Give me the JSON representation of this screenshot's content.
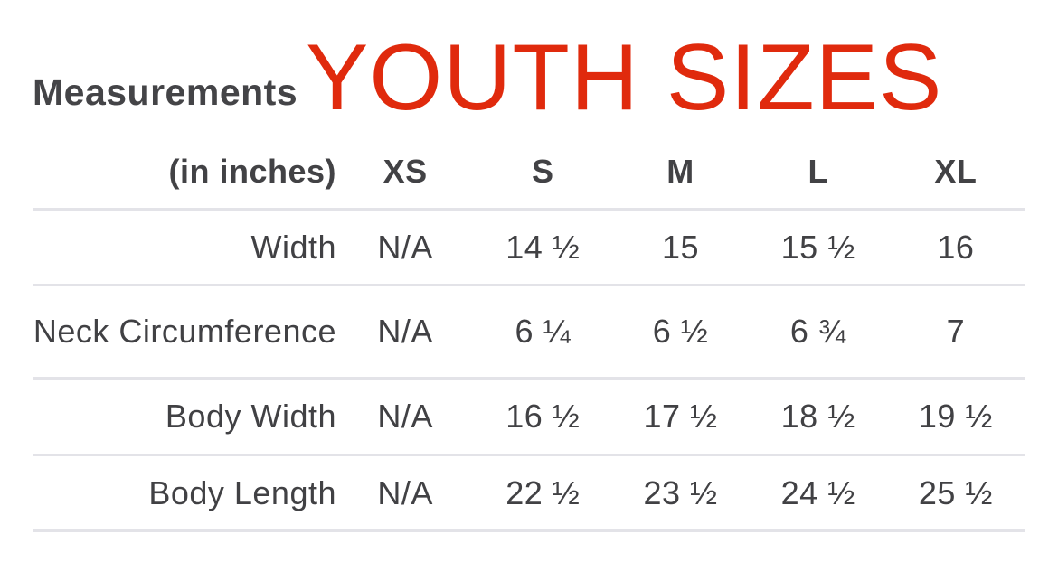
{
  "page": {
    "background": "#ffffff"
  },
  "title": {
    "measurements": "Measurements",
    "youth_sizes": "YOUTH SIZES",
    "accent_color": "#e02a0d",
    "text_color": "#444447"
  },
  "table": {
    "unit_label": "(in inches)",
    "columns": [
      "XS",
      "S",
      "M",
      "L",
      "XL"
    ],
    "rows": [
      {
        "label": "Width",
        "values": [
          "N/A",
          "14 ½",
          "15",
          "15 ½",
          "16"
        ]
      },
      {
        "label": "Neck Circumference",
        "values": [
          "N/A",
          "6 ¼",
          "6 ½",
          "6 ¾",
          "7"
        ]
      },
      {
        "label": "Body Width",
        "values": [
          "N/A",
          "16 ½",
          "17 ½",
          "18 ½",
          "19 ½"
        ]
      },
      {
        "label": "Body Length",
        "values": [
          "N/A",
          "22 ½",
          "23 ½",
          "24 ½",
          "25 ½"
        ]
      }
    ],
    "divider_color": "#e3e3e8",
    "text_color": "#414144"
  },
  "chart_data": {
    "type": "table",
    "title": "Measurements YOUTH SIZES",
    "unit": "inches",
    "columns": [
      "XS",
      "S",
      "M",
      "L",
      "XL"
    ],
    "rows": [
      {
        "label": "Width",
        "values": [
          "N/A",
          14.5,
          15,
          15.5,
          16
        ]
      },
      {
        "label": "Neck Circumference",
        "values": [
          "N/A",
          6.25,
          6.5,
          6.75,
          7
        ]
      },
      {
        "label": "Body Width",
        "values": [
          "N/A",
          16.5,
          17.5,
          18.5,
          19.5
        ]
      },
      {
        "label": "Body Length",
        "values": [
          "N/A",
          22.5,
          23.5,
          24.5,
          25.5
        ]
      }
    ]
  }
}
